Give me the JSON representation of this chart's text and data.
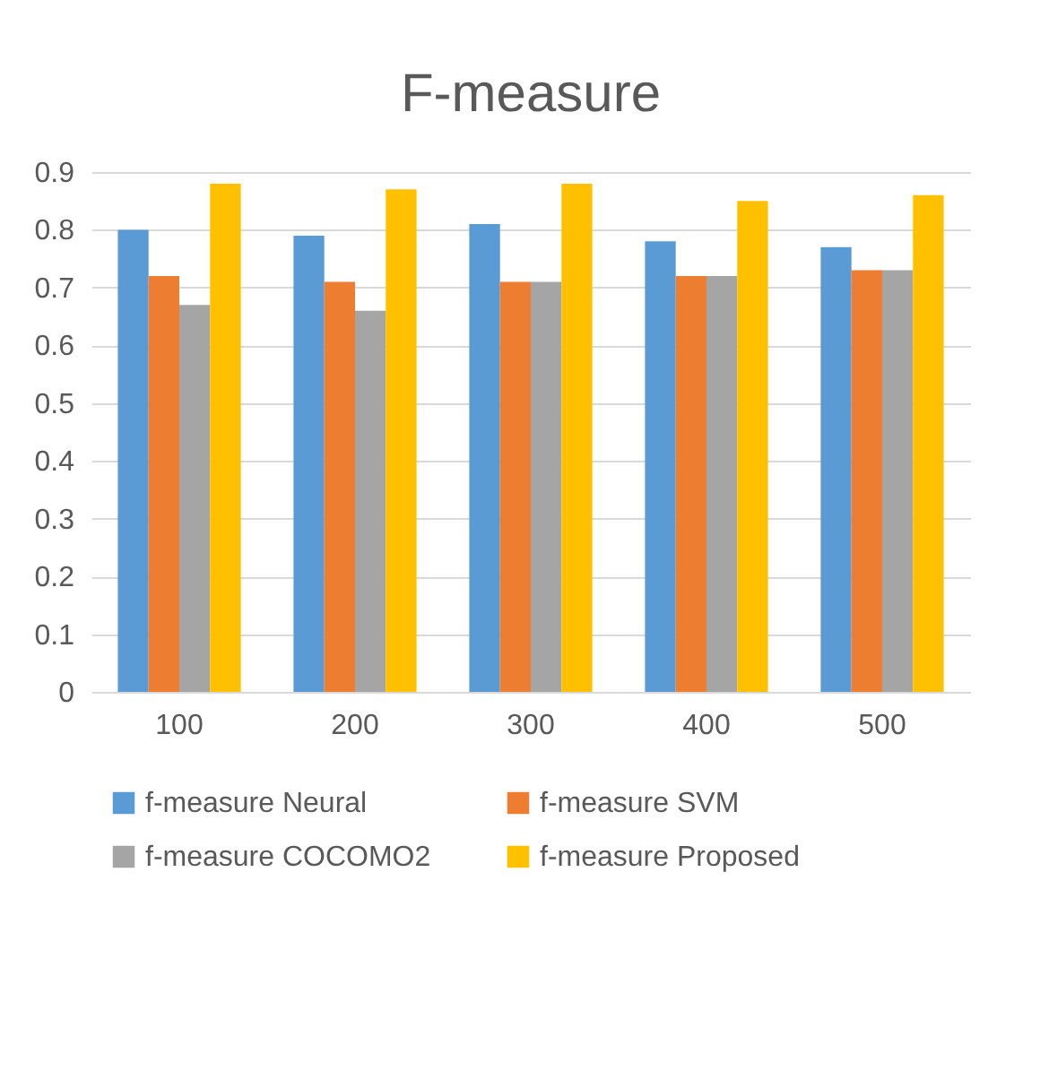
{
  "chart_data": {
    "type": "bar",
    "title": "F-measure",
    "categories": [
      "100",
      "200",
      "300",
      "400",
      "500"
    ],
    "series": [
      {
        "name": "f-measure Neural",
        "color": "#5b9bd5",
        "values": [
          0.8,
          0.79,
          0.81,
          0.78,
          0.77
        ]
      },
      {
        "name": "f-measure SVM",
        "color": "#ed7d31",
        "values": [
          0.72,
          0.71,
          0.71,
          0.72,
          0.73
        ]
      },
      {
        "name": "f-measure COCOMO2",
        "color": "#a5a5a5",
        "values": [
          0.67,
          0.66,
          0.71,
          0.72,
          0.73
        ]
      },
      {
        "name": "f-measure Proposed",
        "color": "#ffc000",
        "values": [
          0.88,
          0.87,
          0.88,
          0.85,
          0.86
        ]
      }
    ],
    "ylim": [
      0,
      0.9
    ],
    "yticks": [
      0,
      0.1,
      0.2,
      0.3,
      0.4,
      0.5,
      0.6,
      0.7,
      0.8,
      0.9
    ],
    "grid": "y",
    "legend": "bottom"
  }
}
